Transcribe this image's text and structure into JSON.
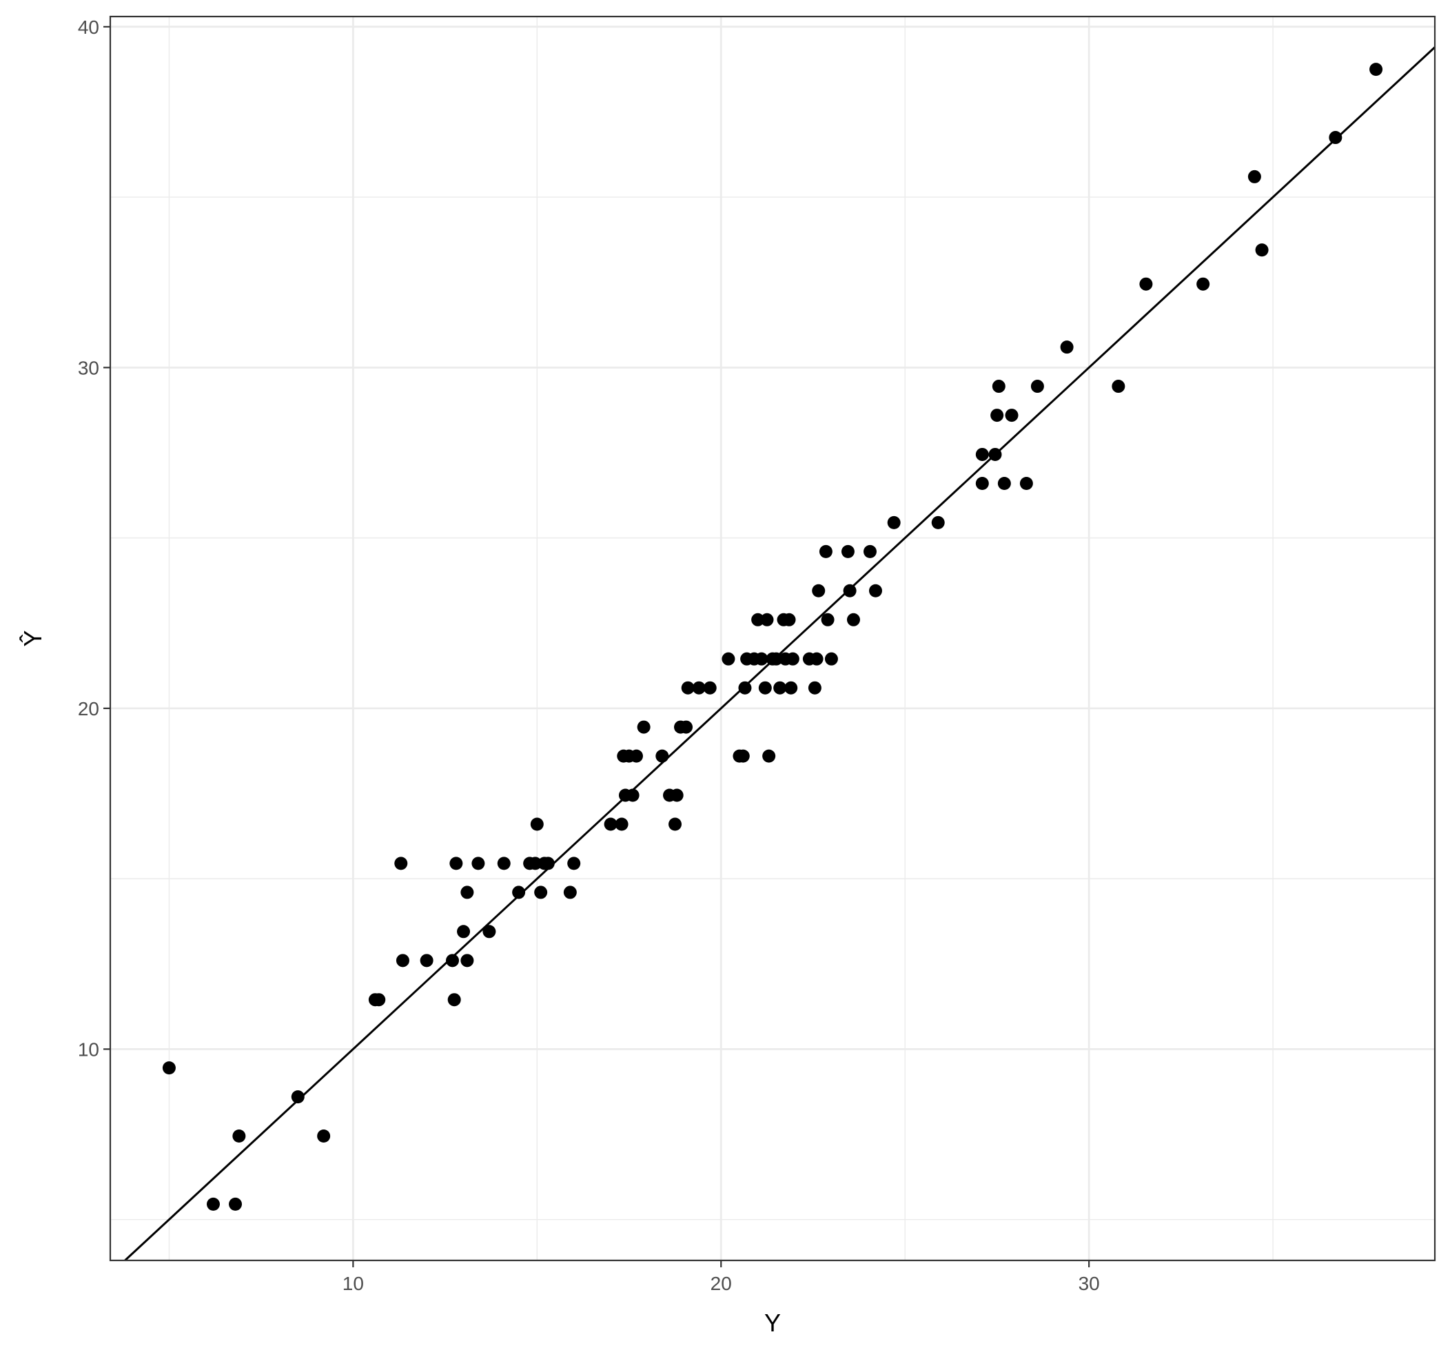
{
  "chart_data": {
    "type": "scatter",
    "xlabel": "Y",
    "ylabel": "Ŷ",
    "xlim": [
      3.4,
      39.4
    ],
    "ylim": [
      3.8,
      40.3
    ],
    "x_ticks": [
      10,
      20,
      30
    ],
    "x_tick_labels": [
      "10",
      "20",
      "30"
    ],
    "x_minor_ticks": [
      5,
      15,
      25,
      35
    ],
    "y_ticks": [
      10,
      20,
      30,
      40
    ],
    "y_tick_labels": [
      "10",
      "20",
      "30",
      "40"
    ],
    "y_minor_ticks": [
      5,
      15,
      25,
      35
    ],
    "grid": true,
    "reference_line": {
      "slope": 1,
      "intercept": 0
    },
    "colors": {
      "points": "#000000",
      "line": "#000000",
      "grid": "#ebebeb",
      "panel_border": "#333333",
      "tick_text": "#4d4d4d",
      "background": "#ffffff"
    },
    "points": [
      [
        5.0,
        9.45
      ],
      [
        6.2,
        5.45
      ],
      [
        6.8,
        5.45
      ],
      [
        6.9,
        7.45
      ],
      [
        8.5,
        8.6
      ],
      [
        9.2,
        7.45
      ],
      [
        10.6,
        11.45
      ],
      [
        10.7,
        11.45
      ],
      [
        11.3,
        15.45
      ],
      [
        11.35,
        12.6
      ],
      [
        12.0,
        12.6
      ],
      [
        12.7,
        12.6
      ],
      [
        12.75,
        11.45
      ],
      [
        12.8,
        15.45
      ],
      [
        13.0,
        13.45
      ],
      [
        13.1,
        14.6
      ],
      [
        13.1,
        12.6
      ],
      [
        13.4,
        15.45
      ],
      [
        13.7,
        13.45
      ],
      [
        14.1,
        15.45
      ],
      [
        14.5,
        14.6
      ],
      [
        14.8,
        15.45
      ],
      [
        14.95,
        15.45
      ],
      [
        15.0,
        16.6
      ],
      [
        15.1,
        14.6
      ],
      [
        15.2,
        15.45
      ],
      [
        15.3,
        15.45
      ],
      [
        15.9,
        14.6
      ],
      [
        16.0,
        15.45
      ],
      [
        17.0,
        16.6
      ],
      [
        17.3,
        16.6
      ],
      [
        17.35,
        18.6
      ],
      [
        17.4,
        17.45
      ],
      [
        17.5,
        18.6
      ],
      [
        17.6,
        17.45
      ],
      [
        17.7,
        18.6
      ],
      [
        17.9,
        19.45
      ],
      [
        18.4,
        18.6
      ],
      [
        18.6,
        17.45
      ],
      [
        18.8,
        17.45
      ],
      [
        18.75,
        16.6
      ],
      [
        18.9,
        19.45
      ],
      [
        19.05,
        19.45
      ],
      [
        19.1,
        20.6
      ],
      [
        19.4,
        20.6
      ],
      [
        19.7,
        20.6
      ],
      [
        20.2,
        21.45
      ],
      [
        20.5,
        18.6
      ],
      [
        20.6,
        18.6
      ],
      [
        20.65,
        20.6
      ],
      [
        20.7,
        21.45
      ],
      [
        20.9,
        21.45
      ],
      [
        21.0,
        22.6
      ],
      [
        21.1,
        21.45
      ],
      [
        21.2,
        20.6
      ],
      [
        21.25,
        22.6
      ],
      [
        21.3,
        18.6
      ],
      [
        21.4,
        21.45
      ],
      [
        21.5,
        21.45
      ],
      [
        21.6,
        20.6
      ],
      [
        21.7,
        22.6
      ],
      [
        21.75,
        21.45
      ],
      [
        21.85,
        22.6
      ],
      [
        21.9,
        20.6
      ],
      [
        21.95,
        21.45
      ],
      [
        22.4,
        21.45
      ],
      [
        22.6,
        21.45
      ],
      [
        22.55,
        20.6
      ],
      [
        22.65,
        23.45
      ],
      [
        22.85,
        24.6
      ],
      [
        22.9,
        22.6
      ],
      [
        23.0,
        21.45
      ],
      [
        23.45,
        24.6
      ],
      [
        23.5,
        23.45
      ],
      [
        23.6,
        22.6
      ],
      [
        24.05,
        24.6
      ],
      [
        24.2,
        23.45
      ],
      [
        24.7,
        25.45
      ],
      [
        25.9,
        25.45
      ],
      [
        27.1,
        26.6
      ],
      [
        27.1,
        27.45
      ],
      [
        27.45,
        27.45
      ],
      [
        27.5,
        28.6
      ],
      [
        27.55,
        29.45
      ],
      [
        27.7,
        26.6
      ],
      [
        27.9,
        28.6
      ],
      [
        28.3,
        26.6
      ],
      [
        28.6,
        29.45
      ],
      [
        29.4,
        30.6
      ],
      [
        30.8,
        29.45
      ],
      [
        31.55,
        32.45
      ],
      [
        33.1,
        32.45
      ],
      [
        34.5,
        35.6
      ],
      [
        34.7,
        33.45
      ],
      [
        36.7,
        36.75
      ],
      [
        37.8,
        38.75
      ]
    ]
  }
}
